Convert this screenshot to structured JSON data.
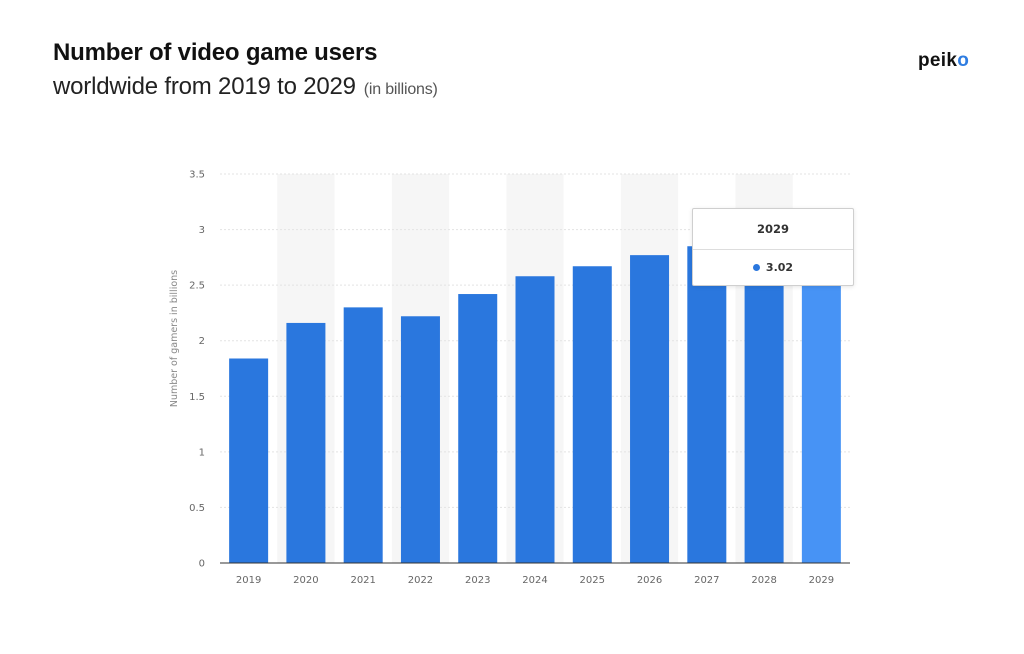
{
  "header": {
    "title": "Number of video game users",
    "subtitle": "worldwide from 2019 to 2029",
    "unit": "(in billions)"
  },
  "logo": {
    "text_main": "peik",
    "text_mark": "o"
  },
  "colors": {
    "bar": "#2a77de",
    "bar_highlight": "#4793f5",
    "band": "#f6f6f6",
    "gridline": "#e3e3e3",
    "axis": "#333333"
  },
  "chart_data": {
    "type": "bar",
    "title": "",
    "xlabel": "",
    "ylabel": "Number of gamers in billions",
    "categories": [
      "2019",
      "2020",
      "2021",
      "2022",
      "2023",
      "2024",
      "2025",
      "2026",
      "2027",
      "2028",
      "2029"
    ],
    "values": [
      1.84,
      2.16,
      2.3,
      2.22,
      2.42,
      2.58,
      2.67,
      2.77,
      2.85,
      2.95,
      3.02
    ],
    "ylim": [
      0,
      3.5
    ],
    "yticks": [
      "0",
      "0.5",
      "1",
      "1.5",
      "2",
      "2.5",
      "3",
      "3.5"
    ],
    "highlighted_category": "2029",
    "grid": true,
    "legend": "none"
  },
  "tooltip": {
    "title": "2029",
    "value": "3.02"
  }
}
